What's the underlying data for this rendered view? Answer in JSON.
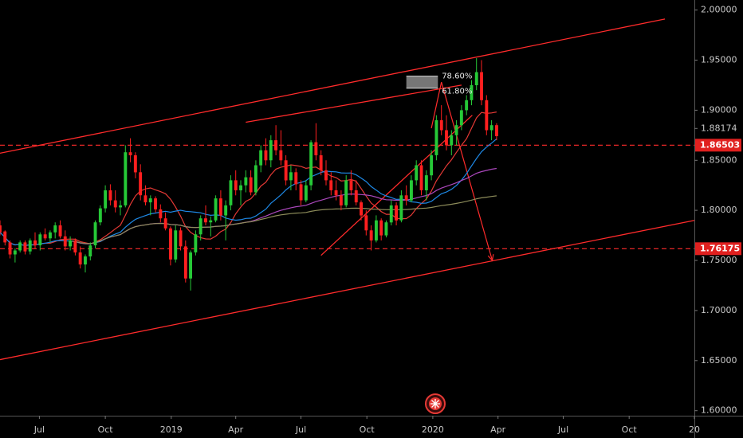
{
  "chart_data": {
    "type": "candlestick",
    "title": "",
    "xlabel": "",
    "ylabel": "",
    "ylim": [
      1.595,
      2.01
    ],
    "xlim": [
      "2018-05-07",
      "2020-12-31"
    ],
    "grid": false,
    "y_ticks": [
      "2.00000",
      "1.95000",
      "1.90000",
      "1.85000",
      "1.80000",
      "1.75000",
      "1.70000",
      "1.65000",
      "1.60000"
    ],
    "y_tick_values": [
      2.0,
      1.95,
      1.9,
      1.85,
      1.8,
      1.75,
      1.7,
      1.65,
      1.6
    ],
    "x_ticks": [
      {
        "label": "Jul",
        "date": "2018-07-01"
      },
      {
        "label": "Oct",
        "date": "2018-10-01"
      },
      {
        "label": "2019",
        "date": "2019-01-01"
      },
      {
        "label": "Apr",
        "date": "2019-04-01"
      },
      {
        "label": "Jul",
        "date": "2019-07-01"
      },
      {
        "label": "Oct",
        "date": "2019-10-01"
      },
      {
        "label": "2020",
        "date": "2020-01-01"
      },
      {
        "label": "Apr",
        "date": "2020-04-01"
      },
      {
        "label": "Jul",
        "date": "2020-07-01"
      },
      {
        "label": "Oct",
        "date": "2020-10-01"
      },
      {
        "label": "20",
        "date": "2020-12-31"
      }
    ],
    "price_levels": [
      {
        "label": "1.88174",
        "value": 1.88174,
        "style": "plain"
      },
      {
        "label": "1.86503",
        "value": 1.86503,
        "style": "red-box"
      },
      {
        "label": "1.76175",
        "value": 1.76175,
        "style": "red-box"
      }
    ],
    "candles": {
      "start": "2018-05-07",
      "period_days": 7,
      "ohlc": [
        [
          1.785,
          1.79,
          1.775,
          1.778
        ],
        [
          1.779,
          1.78,
          1.765,
          1.768
        ],
        [
          1.768,
          1.77,
          1.752,
          1.756
        ],
        [
          1.756,
          1.762,
          1.748,
          1.76
        ],
        [
          1.76,
          1.77,
          1.758,
          1.768
        ],
        [
          1.768,
          1.77,
          1.756,
          1.759
        ],
        [
          1.759,
          1.772,
          1.756,
          1.77
        ],
        [
          1.77,
          1.778,
          1.762,
          1.765
        ],
        [
          1.765,
          1.778,
          1.76,
          1.776
        ],
        [
          1.776,
          1.782,
          1.77,
          1.772
        ],
        [
          1.772,
          1.78,
          1.768,
          1.778
        ],
        [
          1.778,
          1.788,
          1.772,
          1.785
        ],
        [
          1.785,
          1.79,
          1.772,
          1.774
        ],
        [
          1.774,
          1.78,
          1.76,
          1.764
        ],
        [
          1.764,
          1.774,
          1.76,
          1.77
        ],
        [
          1.77,
          1.772,
          1.755,
          1.758
        ],
        [
          1.758,
          1.764,
          1.742,
          1.746
        ],
        [
          1.746,
          1.756,
          1.738,
          1.754
        ],
        [
          1.754,
          1.768,
          1.75,
          1.765
        ],
        [
          1.765,
          1.79,
          1.762,
          1.788
        ],
        [
          1.788,
          1.805,
          1.785,
          1.802
        ],
        [
          1.802,
          1.825,
          1.798,
          1.82
        ],
        [
          1.82,
          1.826,
          1.805,
          1.81
        ],
        [
          1.81,
          1.82,
          1.798,
          1.803
        ],
        [
          1.803,
          1.81,
          1.795,
          1.805
        ],
        [
          1.805,
          1.865,
          1.803,
          1.858
        ],
        [
          1.858,
          1.872,
          1.848,
          1.855
        ],
        [
          1.855,
          1.858,
          1.832,
          1.838
        ],
        [
          1.838,
          1.846,
          1.81,
          1.815
        ],
        [
          1.815,
          1.825,
          1.805,
          1.808
        ],
        [
          1.808,
          1.815,
          1.795,
          1.812
        ],
        [
          1.812,
          1.814,
          1.798,
          1.801
        ],
        [
          1.801,
          1.806,
          1.788,
          1.792
        ],
        [
          1.792,
          1.798,
          1.78,
          1.782
        ],
        [
          1.782,
          1.784,
          1.745,
          1.751
        ],
        [
          1.751,
          1.785,
          1.748,
          1.78
        ],
        [
          1.78,
          1.783,
          1.76,
          1.764
        ],
        [
          1.764,
          1.77,
          1.728,
          1.732
        ],
        [
          1.732,
          1.76,
          1.72,
          1.758
        ],
        [
          1.758,
          1.78,
          1.755,
          1.776
        ],
        [
          1.776,
          1.795,
          1.77,
          1.792
        ],
        [
          1.792,
          1.805,
          1.785,
          1.788
        ],
        [
          1.788,
          1.794,
          1.774,
          1.79
        ],
        [
          1.79,
          1.815,
          1.788,
          1.812
        ],
        [
          1.812,
          1.82,
          1.79,
          1.795
        ],
        [
          1.795,
          1.81,
          1.77,
          1.805
        ],
        [
          1.805,
          1.835,
          1.8,
          1.83
        ],
        [
          1.83,
          1.84,
          1.815,
          1.82
        ],
        [
          1.82,
          1.83,
          1.805,
          1.825
        ],
        [
          1.825,
          1.84,
          1.818,
          1.833
        ],
        [
          1.833,
          1.84,
          1.815,
          1.818
        ],
        [
          1.818,
          1.85,
          1.815,
          1.845
        ],
        [
          1.845,
          1.865,
          1.838,
          1.86
        ],
        [
          1.86,
          1.872,
          1.845,
          1.85
        ],
        [
          1.85,
          1.875,
          1.843,
          1.87
        ],
        [
          1.87,
          1.885,
          1.855,
          1.86
        ],
        [
          1.86,
          1.88,
          1.845,
          1.85
        ],
        [
          1.85,
          1.855,
          1.825,
          1.83
        ],
        [
          1.83,
          1.845,
          1.82,
          1.838
        ],
        [
          1.838,
          1.842,
          1.82,
          1.826
        ],
        [
          1.826,
          1.83,
          1.805,
          1.81
        ],
        [
          1.81,
          1.83,
          1.808,
          1.825
        ],
        [
          1.825,
          1.87,
          1.82,
          1.868
        ],
        [
          1.868,
          1.887,
          1.85,
          1.855
        ],
        [
          1.855,
          1.86,
          1.835,
          1.84
        ],
        [
          1.84,
          1.85,
          1.825,
          1.83
        ],
        [
          1.83,
          1.838,
          1.815,
          1.82
        ],
        [
          1.82,
          1.83,
          1.81,
          1.815
        ],
        [
          1.815,
          1.82,
          1.8,
          1.805
        ],
        [
          1.805,
          1.835,
          1.803,
          1.83
        ],
        [
          1.83,
          1.84,
          1.815,
          1.82
        ],
        [
          1.82,
          1.83,
          1.805,
          1.808
        ],
        [
          1.808,
          1.81,
          1.79,
          1.795
        ],
        [
          1.795,
          1.8,
          1.775,
          1.78
        ],
        [
          1.78,
          1.785,
          1.76,
          1.77
        ],
        [
          1.77,
          1.795,
          1.768,
          1.79
        ],
        [
          1.79,
          1.792,
          1.77,
          1.775
        ],
        [
          1.775,
          1.79,
          1.773,
          1.788
        ],
        [
          1.788,
          1.81,
          1.785,
          1.805
        ],
        [
          1.805,
          1.808,
          1.785,
          1.79
        ],
        [
          1.79,
          1.82,
          1.788,
          1.815
        ],
        [
          1.815,
          1.825,
          1.805,
          1.81
        ],
        [
          1.81,
          1.835,
          1.808,
          1.83
        ],
        [
          1.83,
          1.85,
          1.825,
          1.845
        ],
        [
          1.845,
          1.85,
          1.815,
          1.82
        ],
        [
          1.82,
          1.84,
          1.81,
          1.835
        ],
        [
          1.835,
          1.86,
          1.83,
          1.855
        ],
        [
          1.855,
          1.895,
          1.85,
          1.89
        ],
        [
          1.89,
          1.905,
          1.875,
          1.88
        ],
        [
          1.88,
          1.895,
          1.86,
          1.865
        ],
        [
          1.865,
          1.88,
          1.855,
          1.875
        ],
        [
          1.875,
          1.89,
          1.865,
          1.885
        ],
        [
          1.885,
          1.905,
          1.88,
          1.9
        ],
        [
          1.9,
          1.915,
          1.895,
          1.91
        ],
        [
          1.91,
          1.93,
          1.905,
          1.925
        ],
        [
          1.925,
          1.952,
          1.92,
          1.938
        ],
        [
          1.938,
          1.95,
          1.905,
          1.91
        ],
        [
          1.91,
          1.915,
          1.875,
          1.88
        ],
        [
          1.88,
          1.89,
          1.87,
          1.885
        ],
        [
          1.885,
          1.887,
          1.87,
          1.874
        ]
      ]
    },
    "moving_averages": [
      {
        "color": "#e53935",
        "period": 10
      },
      {
        "color": "#1e88e5",
        "period": 20
      },
      {
        "color": "#ab47bc",
        "period": 50
      },
      {
        "color": "#8d8c5a",
        "period": 100
      }
    ],
    "drawings": {
      "channel_upper": {
        "points": [
          [
            "2018-05-07",
            1.857
          ],
          [
            "2020-11-20",
            1.991
          ]
        ]
      },
      "channel_middle": {
        "points": [
          [
            "2019-04-15",
            1.888
          ],
          [
            "2020-02-10",
            1.925
          ]
        ]
      },
      "channel_lower": {
        "points": [
          [
            "2018-05-07",
            1.651
          ],
          [
            "2020-12-31",
            1.79
          ]
        ]
      },
      "trendline": {
        "points": [
          [
            "2019-07-29",
            1.755
          ],
          [
            "2020-02-25",
            1.895
          ]
        ]
      },
      "projection": {
        "points": [
          [
            "2019-12-30",
            1.882
          ],
          [
            "2020-01-13",
            1.928
          ],
          [
            "2020-03-24",
            1.75
          ]
        ]
      },
      "levels": [
        1.86503,
        1.76175
      ],
      "fib_zone": {
        "start": "2019-11-25",
        "end": "2020-01-08",
        "top": 1.934,
        "bottom": 1.922
      },
      "fib_labels": [
        "78.60%",
        "61.80%"
      ]
    }
  },
  "marker_icon": "event-flag-icon"
}
